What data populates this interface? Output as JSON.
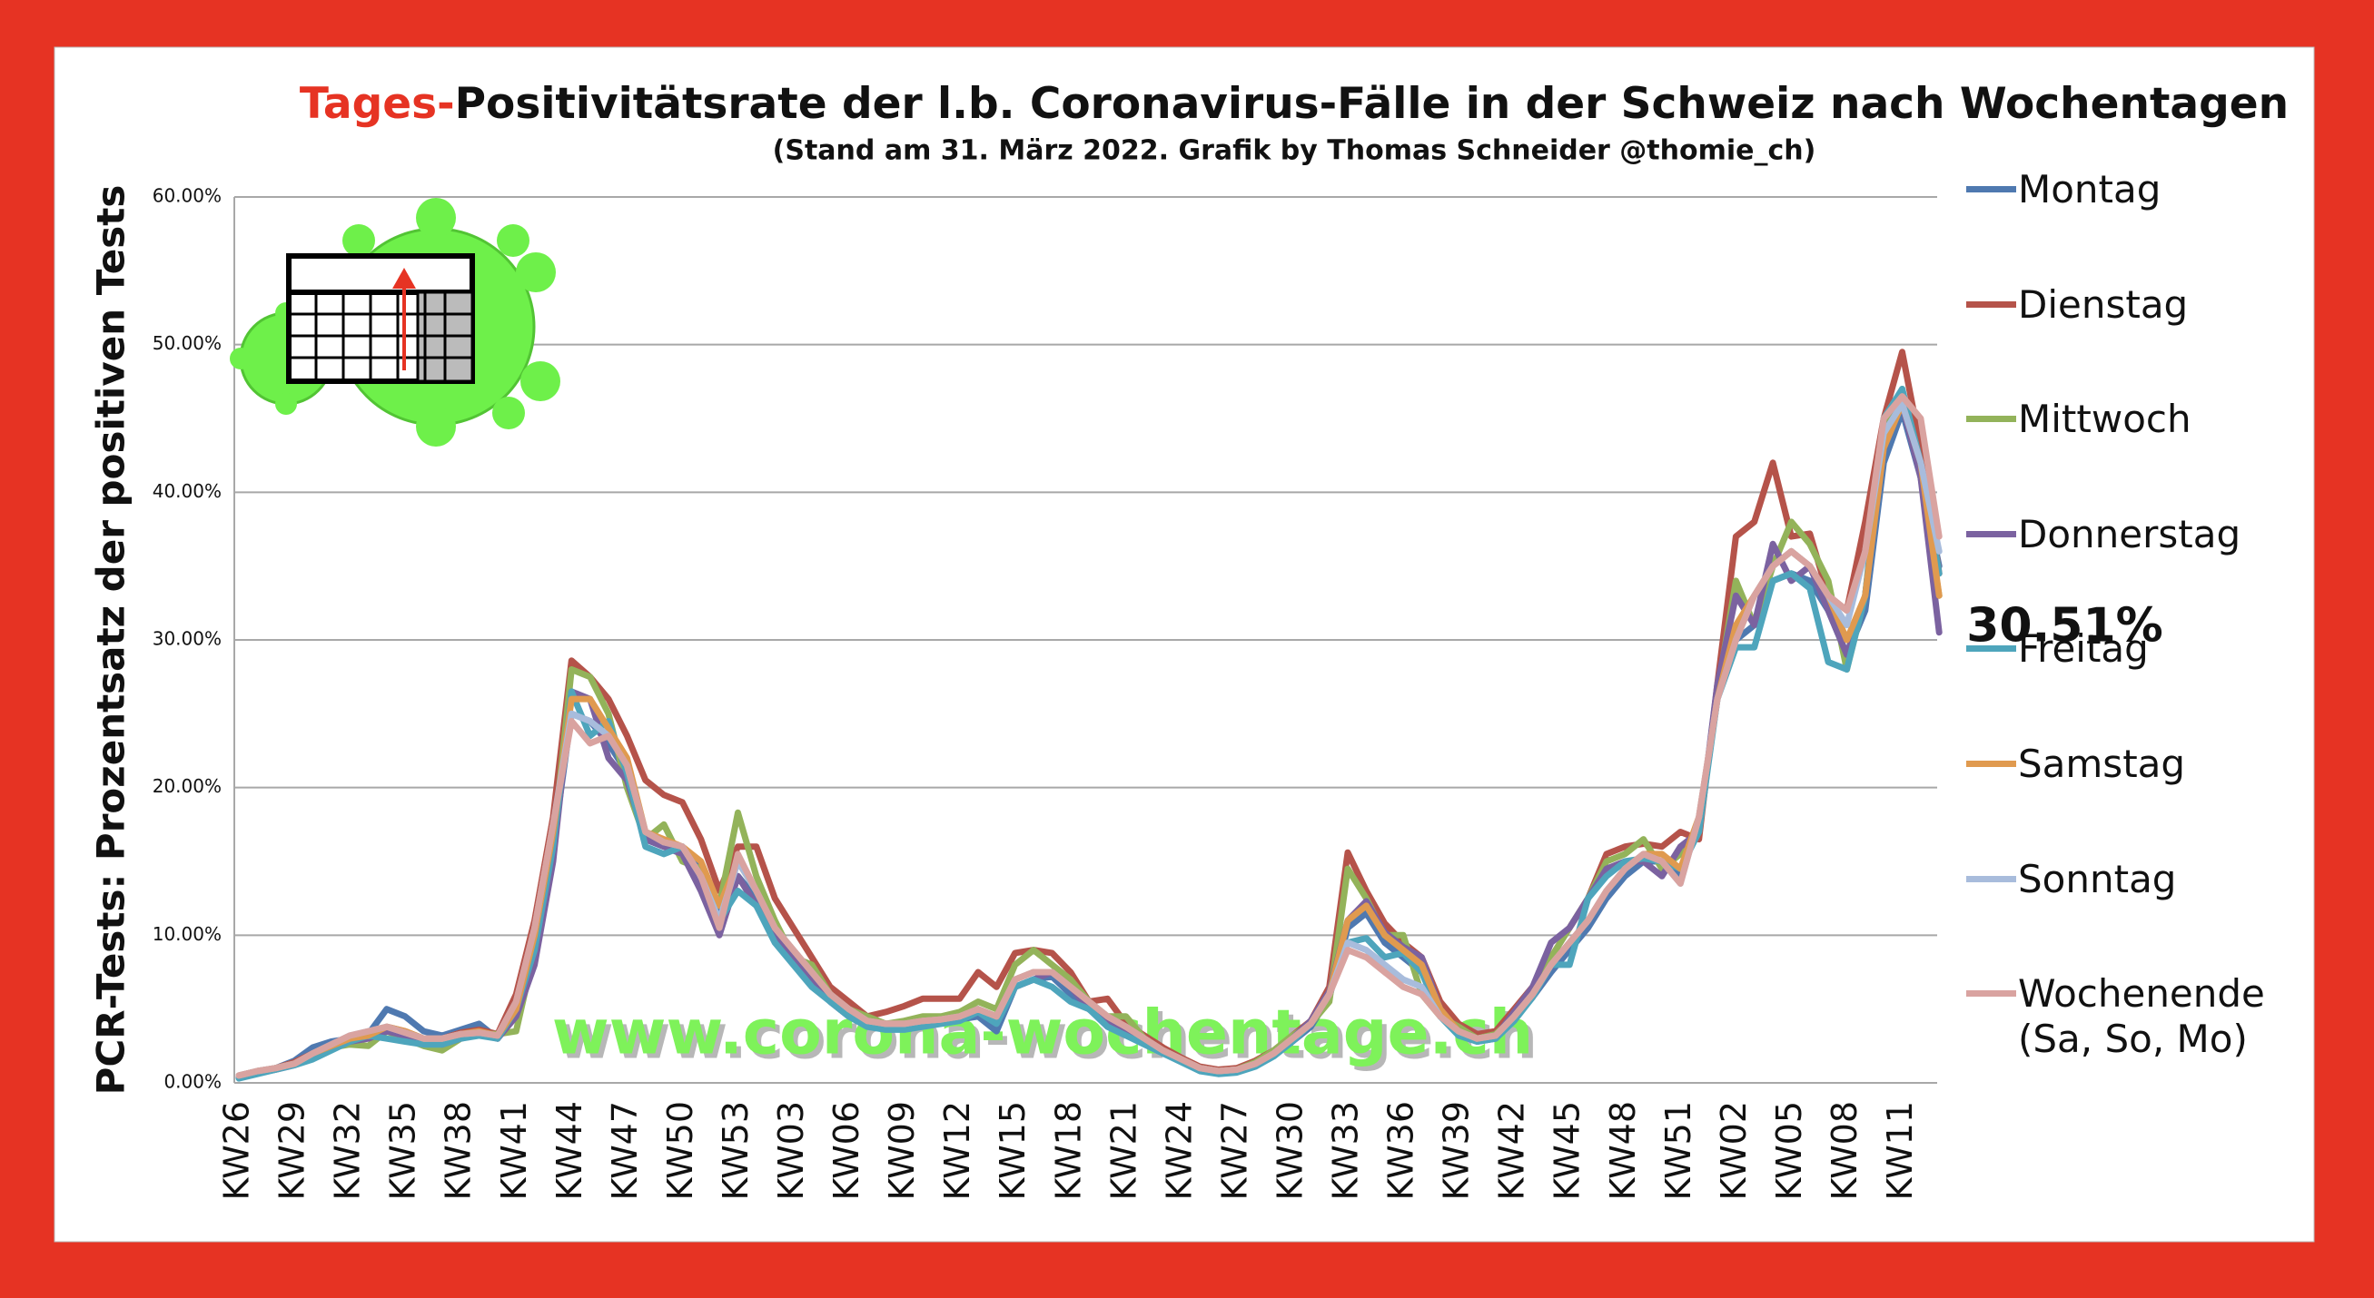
{
  "chart_data": {
    "type": "line",
    "title": {
      "highlight": "Tages-",
      "text": "Positivitätsrate der l.b. Coronavirus-Fälle in der Schweiz nach Wochentagen"
    },
    "subtitle": "(Stand am 31. März 2022. Grafik by Thomas Schneider @thomie_ch)",
    "y_label": "PCR-Tests: Prozentsatz der positiven Tests",
    "annotation": "30.51%",
    "watermark": "www.corona-wochentage.ch",
    "ylim": [
      0,
      60
    ],
    "yticks": [
      {
        "value": 0,
        "label": "0.00%"
      },
      {
        "value": 10,
        "label": "10.00%"
      },
      {
        "value": 20,
        "label": "20.00%"
      },
      {
        "value": 30,
        "label": "30.00%"
      },
      {
        "value": 40,
        "label": "40.00%"
      },
      {
        "value": 50,
        "label": "50.00%"
      },
      {
        "value": 60,
        "label": "60.00%"
      }
    ],
    "grid": true,
    "legend": "right",
    "categories": [
      "KW26",
      null,
      null,
      "KW29",
      null,
      null,
      "KW32",
      null,
      null,
      "KW35",
      null,
      null,
      "KW38",
      null,
      null,
      "KW41",
      null,
      null,
      "KW44",
      null,
      null,
      "KW47",
      null,
      null,
      "KW50",
      null,
      null,
      "KW53",
      null,
      null,
      "KW03",
      null,
      null,
      "KW06",
      null,
      null,
      "KW09",
      null,
      null,
      "KW12",
      null,
      null,
      "KW15",
      null,
      null,
      "KW18",
      null,
      null,
      "KW21",
      null,
      null,
      "KW24",
      null,
      null,
      "KW27",
      null,
      null,
      "KW30",
      null,
      null,
      "KW33",
      null,
      null,
      "KW36",
      null,
      null,
      "KW39",
      null,
      null,
      "KW42",
      null,
      null,
      "KW45",
      null,
      null,
      "KW48",
      null,
      null,
      "KW51",
      null,
      null,
      "KW02",
      null,
      null,
      "KW05",
      null,
      null,
      "KW08",
      null,
      null,
      "KW11",
      null,
      null
    ],
    "series": [
      {
        "name": "Montag",
        "color": "#4f79b0",
        "values": [
          0.4,
          0.7,
          1.0,
          1.5,
          2.4,
          2.8,
          3.0,
          3.3,
          5.0,
          4.5,
          3.5,
          3.2,
          3.6,
          4.0,
          3.0,
          5.5,
          9.0,
          16.0,
          25.0,
          24.5,
          23.0,
          21.0,
          16.5,
          16.0,
          15.5,
          14.5,
          11.5,
          14.0,
          12.5,
          10.0,
          8.5,
          7.0,
          5.5,
          4.5,
          4.0,
          3.8,
          3.9,
          4.0,
          4.2,
          4.3,
          4.5,
          3.5,
          6.5,
          7.0,
          7.2,
          6.0,
          5.0,
          4.0,
          3.5,
          2.8,
          2.0,
          1.5,
          0.9,
          0.7,
          0.8,
          1.2,
          1.9,
          2.8,
          3.8,
          5.8,
          10.5,
          11.5,
          9.5,
          8.5,
          7.5,
          4.8,
          3.3,
          2.8,
          3.0,
          4.3,
          5.8,
          7.5,
          9.0,
          10.5,
          12.5,
          14.0,
          15.0,
          15.0,
          14.0,
          17.5,
          26.0,
          30.0,
          31.0,
          34.0,
          34.5,
          34.0,
          32.0,
          29.0,
          32.0,
          42.0,
          45.5,
          41.0,
          35.0
        ]
      },
      {
        "name": "Dienstag",
        "color": "#b5534a",
        "values": [
          0.5,
          0.8,
          1.0,
          1.4,
          2.0,
          2.5,
          3.0,
          3.2,
          3.8,
          3.5,
          3.0,
          3.0,
          3.4,
          3.6,
          3.3,
          6.0,
          11.0,
          18.0,
          28.6,
          27.5,
          26.0,
          23.5,
          20.5,
          19.5,
          19.0,
          16.5,
          13.0,
          16.0,
          16.0,
          12.5,
          10.5,
          8.5,
          6.5,
          5.5,
          4.5,
          4.8,
          5.2,
          5.7,
          5.7,
          5.7,
          7.5,
          6.5,
          8.8,
          9.0,
          8.8,
          7.5,
          5.5,
          5.7,
          4.0,
          3.2,
          2.4,
          1.7,
          1.1,
          0.9,
          1.0,
          1.5,
          2.2,
          3.2,
          4.2,
          6.5,
          15.6,
          13.0,
          10.8,
          9.5,
          8.5,
          5.5,
          4.0,
          3.3,
          3.5,
          5.0,
          6.5,
          8.5,
          10.5,
          12.5,
          15.5,
          16.0,
          16.2,
          16.0,
          17.0,
          16.5,
          27.0,
          37.0,
          38.0,
          42.0,
          37.0,
          37.2,
          33.0,
          32.0,
          38.0,
          45.0,
          49.5,
          43.0,
          34.5
        ]
      },
      {
        "name": "Mittwoch",
        "color": "#93b35a",
        "values": [
          0.4,
          0.7,
          1.0,
          1.3,
          1.9,
          2.4,
          2.6,
          2.5,
          3.5,
          3.0,
          2.5,
          2.2,
          3.0,
          3.3,
          3.3,
          3.5,
          9.0,
          16.0,
          28.0,
          27.5,
          25.0,
          20.0,
          16.5,
          17.5,
          15.0,
          14.5,
          12.0,
          18.3,
          14.0,
          11.0,
          8.5,
          8.0,
          6.0,
          5.0,
          4.5,
          4.0,
          4.2,
          4.5,
          4.5,
          4.8,
          5.5,
          5.0,
          8.0,
          9.0,
          8.0,
          7.0,
          5.5,
          4.5,
          4.5,
          3.0,
          2.2,
          1.6,
          1.0,
          0.8,
          0.9,
          1.4,
          2.2,
          3.2,
          4.0,
          5.5,
          14.5,
          12.5,
          10.0,
          10.0,
          6.0,
          4.5,
          3.8,
          3.0,
          3.3,
          4.5,
          6.0,
          8.5,
          10.5,
          12.5,
          15.0,
          15.5,
          16.5,
          14.5,
          15.5,
          17.0,
          26.5,
          34.0,
          31.0,
          35.0,
          38.0,
          36.5,
          34.0,
          28.0,
          33.0,
          44.0,
          47.0,
          41.0,
          33.0
        ]
      },
      {
        "name": "Donnerstag",
        "color": "#7b62a0",
        "values": [
          0.4,
          0.7,
          0.9,
          1.2,
          1.8,
          2.3,
          2.8,
          3.0,
          3.5,
          3.2,
          2.8,
          2.6,
          3.0,
          3.3,
          3.0,
          4.5,
          8.0,
          15.0,
          26.5,
          26.0,
          22.0,
          20.5,
          16.5,
          16.0,
          15.5,
          13.0,
          10.0,
          14.0,
          12.0,
          10.0,
          8.5,
          7.0,
          5.5,
          4.5,
          4.0,
          3.8,
          3.8,
          4.0,
          4.2,
          4.4,
          5.0,
          4.0,
          6.5,
          7.0,
          7.5,
          6.5,
          5.0,
          4.0,
          3.5,
          2.8,
          2.0,
          1.5,
          0.9,
          0.7,
          0.8,
          1.2,
          2.0,
          3.0,
          4.2,
          6.2,
          11.0,
          12.3,
          10.2,
          9.2,
          8.5,
          5.0,
          3.5,
          2.9,
          3.1,
          4.8,
          6.5,
          9.5,
          10.5,
          12.5,
          14.5,
          15.0,
          15.0,
          14.0,
          16.0,
          17.0,
          27.0,
          33.0,
          31.0,
          36.5,
          34.0,
          35.0,
          32.0,
          29.0,
          33.0,
          44.0,
          46.0,
          41.0,
          30.51
        ]
      },
      {
        "name": "Freitag",
        "color": "#4ea5bc",
        "values": [
          0.3,
          0.6,
          0.9,
          1.2,
          1.6,
          2.2,
          2.8,
          3.2,
          3.0,
          2.8,
          2.6,
          2.6,
          3.0,
          3.2,
          3.0,
          5.0,
          9.0,
          16.0,
          26.5,
          23.5,
          24.5,
          21.0,
          16.0,
          15.5,
          16.0,
          14.0,
          11.0,
          13.0,
          12.0,
          9.5,
          8.0,
          6.5,
          5.5,
          4.5,
          3.8,
          3.6,
          3.6,
          3.8,
          4.0,
          4.2,
          4.8,
          4.0,
          6.5,
          7.0,
          6.5,
          5.5,
          5.0,
          3.8,
          3.2,
          2.6,
          2.0,
          1.4,
          0.8,
          0.6,
          0.7,
          1.1,
          1.8,
          2.8,
          4.0,
          6.0,
          9.5,
          9.8,
          8.5,
          8.8,
          7.5,
          4.5,
          3.2,
          2.8,
          3.0,
          4.2,
          5.8,
          8.0,
          8.0,
          12.5,
          14.0,
          15.0,
          15.2,
          15.0,
          14.5,
          17.0,
          26.0,
          29.5,
          29.5,
          34.0,
          34.5,
          33.5,
          28.5,
          28.0,
          33.0,
          45.0,
          47.0,
          42.0,
          34.5
        ]
      },
      {
        "name": "Samstag",
        "color": "#e09a4f",
        "values": [
          0.5,
          0.8,
          1.0,
          1.3,
          2.0,
          2.5,
          3.0,
          3.2,
          3.8,
          3.5,
          3.0,
          3.0,
          3.3,
          3.5,
          3.2,
          5.0,
          10.0,
          17.0,
          26.0,
          26.0,
          24.0,
          22.0,
          17.0,
          16.5,
          16.0,
          15.0,
          12.0,
          15.0,
          13.0,
          10.5,
          9.0,
          7.5,
          6.0,
          5.0,
          4.2,
          4.0,
          4.0,
          4.2,
          4.3,
          4.5,
          5.0,
          4.5,
          7.0,
          7.5,
          7.5,
          6.5,
          5.5,
          4.5,
          3.8,
          3.0,
          2.2,
          1.6,
          1.0,
          0.8,
          0.9,
          1.3,
          2.0,
          3.0,
          4.0,
          6.0,
          11.0,
          12.0,
          10.0,
          9.0,
          8.0,
          5.0,
          3.5,
          3.0,
          3.2,
          4.5,
          6.0,
          8.0,
          9.5,
          11.0,
          13.0,
          14.5,
          15.5,
          15.5,
          14.5,
          18.0,
          26.0,
          31.0,
          33.0,
          35.0,
          36.0,
          35.0,
          33.0,
          30.0,
          33.0,
          43.0,
          46.0,
          42.0,
          33.0
        ]
      },
      {
        "name": "Sonntag",
        "color": "#a8bcdc",
        "values": [
          0.5,
          0.8,
          1.0,
          1.3,
          2.0,
          2.6,
          3.2,
          3.5,
          3.8,
          3.4,
          3.0,
          3.0,
          3.3,
          3.4,
          3.2,
          5.5,
          10.5,
          17.5,
          25.0,
          24.5,
          23.5,
          21.5,
          17.0,
          16.3,
          16.0,
          14.0,
          11.0,
          15.0,
          13.0,
          10.5,
          9.0,
          7.5,
          6.0,
          5.0,
          4.2,
          4.0,
          4.0,
          4.2,
          4.3,
          4.5,
          5.0,
          4.5,
          7.0,
          7.5,
          7.5,
          6.5,
          5.5,
          4.5,
          3.8,
          3.0,
          2.2,
          1.6,
          1.0,
          0.8,
          0.9,
          1.3,
          2.0,
          3.0,
          4.0,
          6.0,
          9.5,
          9.0,
          8.0,
          7.0,
          6.5,
          4.5,
          3.5,
          3.0,
          3.2,
          4.5,
          6.0,
          8.0,
          9.5,
          11.0,
          13.0,
          14.5,
          15.5,
          15.0,
          13.5,
          18.0,
          26.0,
          30.0,
          33.0,
          35.0,
          36.0,
          35.0,
          33.0,
          31.0,
          36.0,
          44.0,
          46.0,
          42.0,
          36.0
        ]
      },
      {
        "name": "Wochenende (Sa, So, Mo)",
        "color": "#d9a3a0",
        "values": [
          0.5,
          0.8,
          1.0,
          1.3,
          2.0,
          2.6,
          3.2,
          3.5,
          3.8,
          3.4,
          3.0,
          3.0,
          3.3,
          3.4,
          3.2,
          5.5,
          10.5,
          17.5,
          24.5,
          23.0,
          23.5,
          21.5,
          17.0,
          16.3,
          16.0,
          14.0,
          10.5,
          15.5,
          13.0,
          10.5,
          9.0,
          7.5,
          6.0,
          5.0,
          4.2,
          4.0,
          4.0,
          4.2,
          4.3,
          4.5,
          5.0,
          4.5,
          7.0,
          7.5,
          7.5,
          6.5,
          5.5,
          4.5,
          3.8,
          3.0,
          2.2,
          1.6,
          1.0,
          0.8,
          0.9,
          1.3,
          2.0,
          3.0,
          4.0,
          6.0,
          9.0,
          8.5,
          7.5,
          6.5,
          6.0,
          4.5,
          3.5,
          3.0,
          3.2,
          4.5,
          6.0,
          8.0,
          9.5,
          11.0,
          13.0,
          14.5,
          15.5,
          15.0,
          13.5,
          18.0,
          26.0,
          30.0,
          33.0,
          35.0,
          36.0,
          35.0,
          33.0,
          32.0,
          36.0,
          45.0,
          46.5,
          45.0,
          37.0
        ]
      }
    ]
  }
}
